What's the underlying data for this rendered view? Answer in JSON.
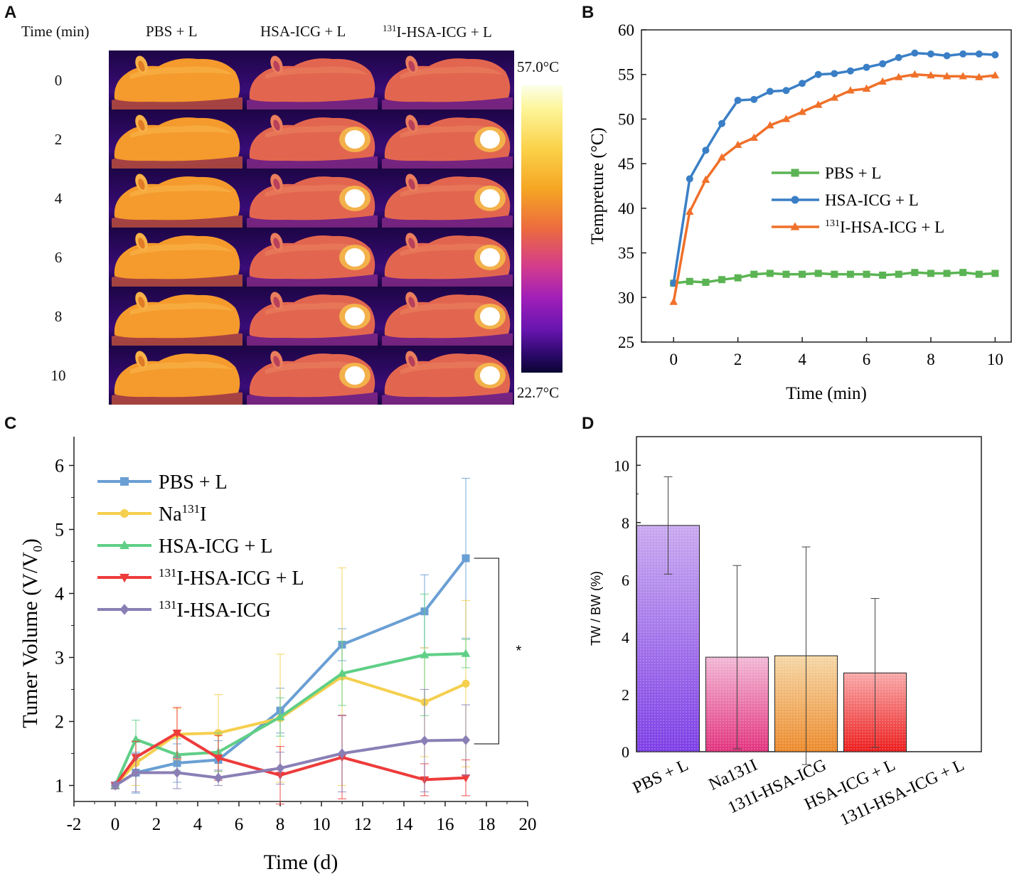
{
  "panels": {
    "A": {
      "letter": "A",
      "time_header": "Time (min)",
      "columns": [
        {
          "label": "PBS + L",
          "sup": "",
          "hot": false
        },
        {
          "label": "HSA-ICG + L",
          "sup": "",
          "hot": true
        },
        {
          "label": "I-HSA-ICG + L",
          "sup": "131",
          "hot": true
        }
      ],
      "times": [
        "0",
        "2",
        "4",
        "6",
        "8",
        "10"
      ],
      "scale_max": "57.0°C",
      "scale_min": "22.7°C"
    },
    "B": {
      "letter": "B"
    },
    "C": {
      "letter": "C"
    },
    "D": {
      "letter": "D"
    }
  },
  "colors": {
    "pbs": "#6a9fd4",
    "na131i": "#f5cf4e",
    "hsa": "#5fcf86",
    "i131hsa_l": "#ee3b3b",
    "i131hsa": "#8a7fb5",
    "b_green": "#5bb453",
    "b_blue": "#3a7fc6",
    "b_orange": "#f0702a"
  },
  "chart_data": [
    {
      "id": "B",
      "type": "line",
      "xlabel": "Time (min)",
      "ylabel": "Tempreture (°C)",
      "xlim": [
        -1,
        10.5
      ],
      "ylim": [
        25,
        60
      ],
      "xticks": [
        0,
        2,
        4,
        6,
        8,
        10
      ],
      "yticks": [
        25,
        30,
        35,
        40,
        45,
        50,
        55,
        60
      ],
      "x": [
        0,
        0.5,
        1,
        1.5,
        2,
        2.5,
        3,
        3.5,
        4,
        4.5,
        5,
        5.5,
        6,
        6.5,
        7,
        7.5,
        8,
        8.5,
        9,
        9.5,
        10
      ],
      "series": [
        {
          "name": "PBS + L",
          "sup": "",
          "color_key": "b_green",
          "marker": "square",
          "values": [
            31.6,
            31.8,
            31.7,
            32.0,
            32.2,
            32.6,
            32.7,
            32.6,
            32.6,
            32.7,
            32.6,
            32.6,
            32.6,
            32.5,
            32.6,
            32.8,
            32.7,
            32.7,
            32.8,
            32.6,
            32.7
          ]
        },
        {
          "name": "HSA-ICG + L",
          "sup": "",
          "color_key": "b_blue",
          "marker": "circle",
          "values": [
            31.6,
            43.3,
            46.5,
            49.5,
            52.1,
            52.2,
            53.1,
            53.2,
            54.0,
            55.0,
            55.1,
            55.4,
            55.8,
            56.2,
            56.9,
            57.4,
            57.3,
            57.1,
            57.3,
            57.3,
            57.2
          ]
        },
        {
          "name": "I-HSA-ICG + L",
          "sup": "131",
          "color_key": "b_orange",
          "marker": "triangle",
          "values": [
            29.5,
            39.6,
            43.2,
            45.7,
            47.1,
            47.9,
            49.3,
            50.0,
            50.8,
            51.6,
            52.4,
            53.2,
            53.4,
            54.2,
            54.7,
            55.0,
            54.9,
            54.8,
            54.8,
            54.7,
            54.9
          ]
        }
      ]
    },
    {
      "id": "C",
      "type": "line",
      "xlabel": "Time (d)",
      "ylabel": "Tumer Volume (V/V",
      "ylabel_sub": "0",
      "ylabel_close": ")",
      "xlim": [
        -2,
        20
      ],
      "ylim": [
        0.75,
        6.45
      ],
      "xticks": [
        -2,
        0,
        2,
        4,
        6,
        8,
        10,
        12,
        14,
        16,
        18,
        20
      ],
      "yticks": [
        1,
        2,
        3,
        4,
        5,
        6
      ],
      "significance": "*",
      "bracket_y": [
        1.65,
        4.55
      ],
      "x": [
        0,
        1,
        3,
        5,
        8,
        11,
        15,
        17
      ],
      "series": [
        {
          "name": "PBS + L",
          "sup": "",
          "color_key": "pbs",
          "marker": "square",
          "values": [
            1.0,
            1.2,
            1.35,
            1.4,
            2.17,
            3.2,
            3.72,
            4.55
          ],
          "errors": [
            0.05,
            0.32,
            0.3,
            0.3,
            0.35,
            0.25,
            0.57,
            1.25
          ]
        },
        {
          "name": "Na",
          "sup": "131",
          "suffix": "I",
          "color_key": "na131i",
          "marker": "circle",
          "values": [
            1.0,
            1.35,
            1.8,
            1.82,
            2.05,
            2.7,
            2.3,
            2.59
          ],
          "errors": [
            0.05,
            0.35,
            0.4,
            0.6,
            1.0,
            1.7,
            0.85,
            1.3
          ]
        },
        {
          "name": "HSA-ICG + L",
          "sup": "",
          "color_key": "hsa",
          "marker": "triangle",
          "values": [
            1.0,
            1.72,
            1.48,
            1.52,
            2.07,
            2.75,
            3.04,
            3.06
          ],
          "errors": [
            0.05,
            0.3,
            0.25,
            0.3,
            0.3,
            0.5,
            0.95,
            0.22
          ]
        },
        {
          "name": "I-HSA-ICG + L",
          "sup": "131",
          "color_key": "i131hsa_l",
          "marker": "triangle-down",
          "values": [
            1.0,
            1.44,
            1.82,
            1.43,
            1.16,
            1.44,
            1.09,
            1.12
          ],
          "errors": [
            0.05,
            0.25,
            0.4,
            0.35,
            0.45,
            0.65,
            0.25,
            0.28
          ]
        },
        {
          "name": "I-HSA-ICG",
          "sup": "131",
          "color_key": "i131hsa",
          "marker": "diamond",
          "values": [
            1.0,
            1.2,
            1.2,
            1.12,
            1.27,
            1.5,
            1.7,
            1.71
          ],
          "errors": [
            0.05,
            0.3,
            0.25,
            0.12,
            0.25,
            0.6,
            0.8,
            0.55
          ]
        }
      ]
    },
    {
      "id": "D",
      "type": "bar",
      "ylabel": "TW / BW (%)",
      "ylim": [
        0,
        11
      ],
      "yticks": [
        0,
        2,
        4,
        6,
        8,
        10
      ],
      "categories": [
        "PBS + L",
        "Na131I",
        "131I-HSA-ICG",
        "HSA-ICG + L",
        "131I-HSA-ICG + L"
      ],
      "values": [
        7.9,
        3.3,
        3.35,
        2.75,
        0
      ],
      "errors": [
        1.7,
        3.2,
        3.8,
        2.6,
        0
      ],
      "bar_colors": [
        [
          "#c9a9ef",
          "#7d3fe6"
        ],
        [
          "#f2b8d6",
          "#e2337e"
        ],
        [
          "#f5d7a6",
          "#ec8a2b"
        ],
        [
          "#f9a9a9",
          "#ec1d1d"
        ],
        [
          "#eeeeee",
          "#bbbbbb"
        ]
      ]
    }
  ]
}
